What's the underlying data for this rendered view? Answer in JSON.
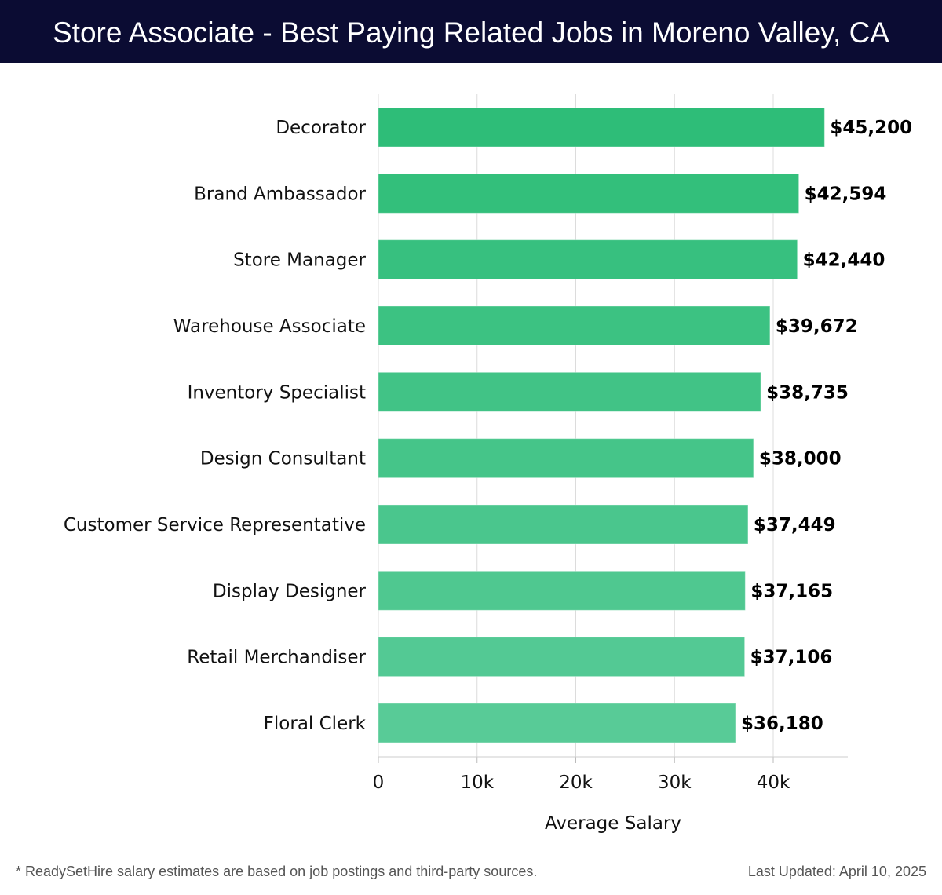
{
  "header": {
    "title": "Store Associate - Best Paying Related Jobs in Moreno Valley, CA"
  },
  "chart_data": {
    "type": "bar",
    "orientation": "horizontal",
    "categories": [
      "Decorator",
      "Brand Ambassador",
      "Store Manager",
      "Warehouse Associate",
      "Inventory Specialist",
      "Design Consultant",
      "Customer Service Representative",
      "Display Designer",
      "Retail Merchandiser",
      "Floral Clerk"
    ],
    "values": [
      45200,
      42594,
      42440,
      39672,
      38735,
      38000,
      37449,
      37165,
      37106,
      36180
    ],
    "data_labels": [
      "$45,200",
      "$42,594",
      "$42,440",
      "$39,672",
      "$38,735",
      "$38,000",
      "$37,449",
      "$37,165",
      "$37,106",
      "$36,180"
    ],
    "xlabel": "Average Salary",
    "xlim": [
      0,
      47500
    ],
    "xticks": [
      0,
      10000,
      20000,
      30000,
      40000
    ],
    "xtick_labels": [
      "0",
      "10k",
      "20k",
      "30k",
      "40k"
    ],
    "grid": true,
    "colors": {
      "top": "#2ebd78",
      "bottom": "#58cb97"
    }
  },
  "footer": {
    "note": "* ReadySetHire salary estimates are based on job postings and third-party sources.",
    "updated": "Last Updated: April 10, 2025"
  }
}
